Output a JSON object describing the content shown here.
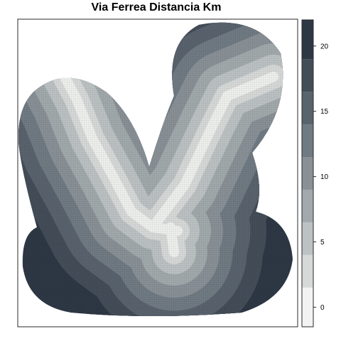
{
  "title": "Via Ferrea Distancia Km",
  "legend": {
    "min": -1.5,
    "max": 22,
    "breaks": [
      -1.5,
      1.5,
      4,
      6.5,
      9,
      11.5,
      14,
      16.5,
      19,
      22
    ],
    "colors": [
      "#f2f3f2",
      "#d6d9d8",
      "#bcc2c3",
      "#a2a9ac",
      "#899197",
      "#707a82",
      "#59636d",
      "#434d58",
      "#2e3845",
      "#1e2734"
    ],
    "ticks": [
      0,
      5,
      10,
      15,
      20
    ],
    "tick_labels": [
      "0",
      "5",
      "10",
      "15",
      "20"
    ]
  },
  "palette": {
    "railway": "#eef0ee",
    "outline": "#2a2a2a"
  }
}
